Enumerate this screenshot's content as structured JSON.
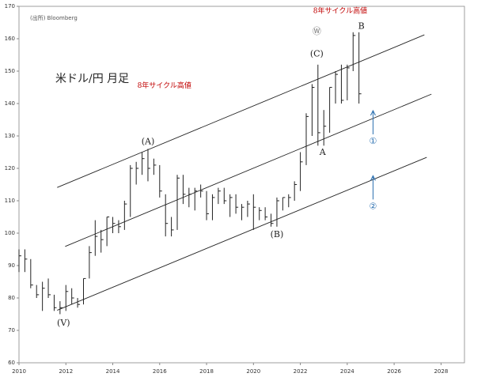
{
  "chart_data": {
    "type": "ohlc",
    "title": "米ドル/円 月足",
    "source": "(出所) Bloomberg",
    "xlim": [
      2010,
      2029
    ],
    "xticks": [
      2010,
      2012,
      2014,
      2016,
      2018,
      2020,
      2022,
      2024,
      2026,
      2028
    ],
    "ylim": [
      60,
      170
    ],
    "yticks": [
      60,
      70,
      80,
      90,
      100,
      110,
      120,
      130,
      140,
      150,
      160,
      170
    ],
    "color": "#222222",
    "x": [
      2010.0,
      2010.25,
      2010.5,
      2010.75,
      2011.0,
      2011.25,
      2011.5,
      2011.75,
      2012.0,
      2012.25,
      2012.5,
      2012.75,
      2013.0,
      2013.25,
      2013.5,
      2013.75,
      2014.0,
      2014.25,
      2014.5,
      2014.75,
      2015.0,
      2015.25,
      2015.5,
      2015.75,
      2016.0,
      2016.25,
      2016.5,
      2016.75,
      2017.0,
      2017.25,
      2017.5,
      2017.75,
      2018.0,
      2018.25,
      2018.5,
      2018.75,
      2019.0,
      2019.25,
      2019.5,
      2019.75,
      2020.0,
      2020.25,
      2020.5,
      2020.75,
      2021.0,
      2021.25,
      2021.5,
      2021.75,
      2022.0,
      2022.25,
      2022.5,
      2022.75,
      2023.0,
      2023.25,
      2023.5,
      2023.75,
      2024.0,
      2024.25,
      2024.5
    ],
    "high": [
      95,
      95,
      92,
      84,
      85,
      86,
      81,
      79,
      84,
      83,
      80,
      86,
      96,
      104,
      101,
      105,
      105,
      104,
      110,
      121,
      122,
      125,
      126,
      123,
      121,
      112,
      105,
      118,
      118,
      114,
      114,
      115,
      113,
      112,
      114,
      114,
      112,
      112,
      109,
      110,
      112,
      108,
      108,
      106,
      111,
      111,
      112,
      116,
      125,
      137,
      146,
      152,
      138,
      145,
      150,
      152,
      152,
      162,
      162
    ],
    "low": [
      88,
      88,
      83,
      80,
      76,
      80,
      76,
      75,
      76,
      78,
      77,
      78,
      86,
      93,
      94,
      96,
      100,
      100,
      101,
      105,
      115,
      118,
      116,
      118,
      111,
      99,
      99,
      101,
      109,
      108,
      107,
      111,
      104,
      104,
      109,
      109,
      105,
      106,
      104,
      105,
      101,
      104,
      104,
      102,
      102,
      107,
      108,
      110,
      113,
      121,
      130,
      127,
      127,
      131,
      140,
      140,
      141,
      150,
      140
    ],
    "close": [
      93,
      92,
      84,
      81,
      83,
      81,
      77,
      77,
      82,
      80,
      78,
      86,
      94,
      99,
      98,
      105,
      103,
      102,
      109,
      120,
      120,
      123,
      120,
      121,
      113,
      103,
      101,
      117,
      112,
      112,
      113,
      113,
      106,
      111,
      113,
      110,
      111,
      108,
      108,
      109,
      108,
      107,
      105,
      103,
      110,
      111,
      111,
      115,
      122,
      136,
      145,
      131,
      133,
      145,
      149,
      141,
      151,
      161,
      143
    ],
    "channels": [
      {
        "x": [
          2011.63,
          2027.29
        ],
        "y": [
          114.1,
          161.2
        ]
      },
      {
        "x": [
          2011.97,
          2027.59
        ],
        "y": [
          95.9,
          142.9
        ]
      },
      {
        "x": [
          2011.63,
          2027.39
        ],
        "y": [
          76.2,
          123.4
        ]
      }
    ],
    "annotations": [
      {
        "text": "8年サイクル高値",
        "x": 2016.2,
        "y": 145.5,
        "color": "#c00000"
      },
      {
        "text": "8年サイクル高値",
        "x": 2023.7,
        "y": 168.5,
        "color": "#c00000"
      },
      {
        "text": "(A)",
        "x": 2015.5,
        "y": 128.2,
        "color": "#222222"
      },
      {
        "text": "(B)",
        "x": 2021.0,
        "y": 99.5,
        "color": "#222222"
      },
      {
        "text": "(C)",
        "x": 2022.7,
        "y": 155.3,
        "color": "#222222"
      },
      {
        "text": "Ⓦ",
        "x": 2022.7,
        "y": 162.2,
        "color": "#777777"
      },
      {
        "text": "(V)",
        "x": 2011.9,
        "y": 72.2,
        "color": "#222222"
      },
      {
        "text": "A",
        "x": 2022.95,
        "y": 124.9,
        "color": "#222222"
      },
      {
        "text": "B",
        "x": 2024.6,
        "y": 163.8,
        "color": "#222222"
      },
      {
        "text": "①",
        "x": 2025.1,
        "y": 128.3,
        "color": "#2a6fb0"
      },
      {
        "text": "②",
        "x": 2025.1,
        "y": 108.2,
        "color": "#2a6fb0"
      }
    ]
  }
}
